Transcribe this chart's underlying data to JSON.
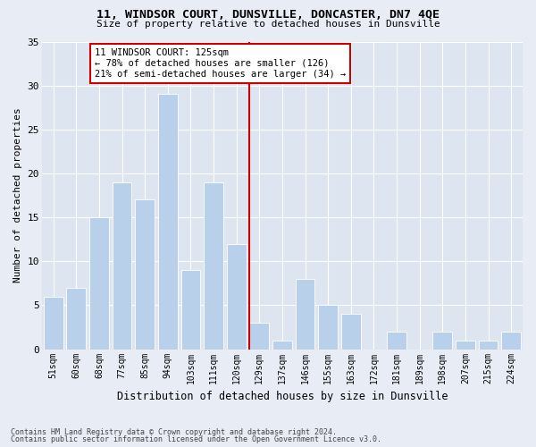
{
  "title": "11, WINDSOR COURT, DUNSVILLE, DONCASTER, DN7 4QE",
  "subtitle": "Size of property relative to detached houses in Dunsville",
  "xlabel": "Distribution of detached houses by size in Dunsville",
  "ylabel": "Number of detached properties",
  "bins": [
    "51sqm",
    "60sqm",
    "68sqm",
    "77sqm",
    "85sqm",
    "94sqm",
    "103sqm",
    "111sqm",
    "120sqm",
    "129sqm",
    "137sqm",
    "146sqm",
    "155sqm",
    "163sqm",
    "172sqm",
    "181sqm",
    "189sqm",
    "198sqm",
    "207sqm",
    "215sqm",
    "224sqm"
  ],
  "values": [
    6,
    7,
    15,
    19,
    17,
    29,
    9,
    19,
    12,
    3,
    1,
    8,
    5,
    4,
    0,
    2,
    0,
    2,
    1,
    1,
    2
  ],
  "bar_color": "#b8d0ea",
  "bar_width": 0.85,
  "vline_x_idx": 8.55,
  "vline_color": "#cc0000",
  "annotation_line1": "11 WINDSOR COURT: 125sqm",
  "annotation_line2": "← 78% of detached houses are smaller (126)",
  "annotation_line3": "21% of semi-detached houses are larger (34) →",
  "annotation_box_color": "#ffffff",
  "annotation_box_edge": "#cc0000",
  "ylim": [
    0,
    35
  ],
  "yticks": [
    0,
    5,
    10,
    15,
    20,
    25,
    30,
    35
  ],
  "bg_color": "#dde5f0",
  "fig_bg_color": "#e8edf5",
  "grid_color": "#ffffff",
  "footer1": "Contains HM Land Registry data © Crown copyright and database right 2024.",
  "footer2": "Contains public sector information licensed under the Open Government Licence v3.0."
}
